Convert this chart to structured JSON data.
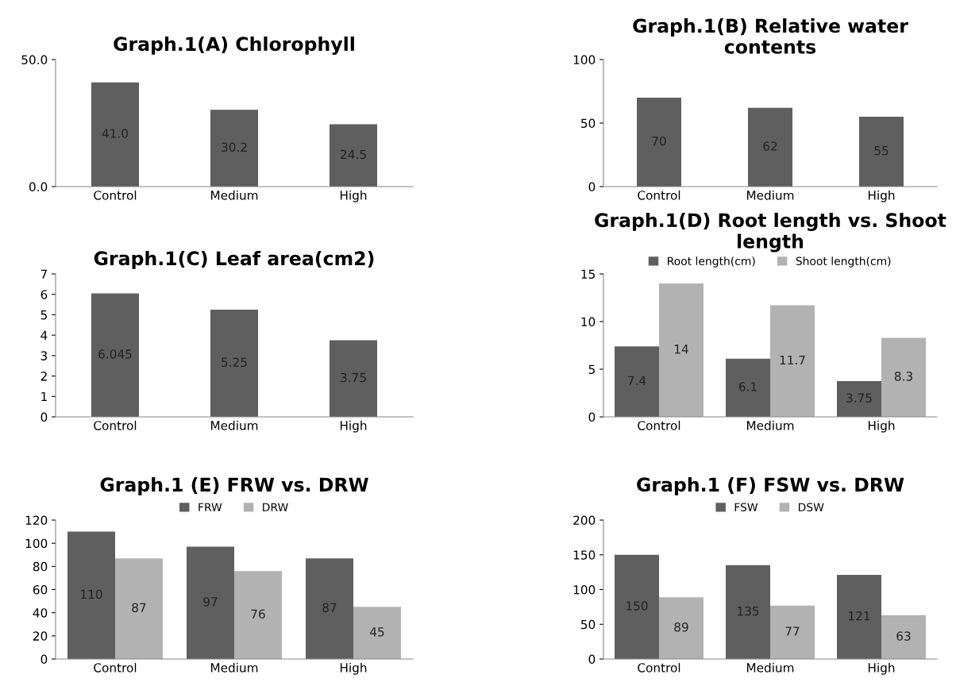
{
  "chart_data": [
    {
      "type": "bar",
      "title": "Graph.1(A) Chlorophyll",
      "categories": [
        "Control",
        "Medium",
        "High"
      ],
      "series": [
        {
          "color": "#5f5f5f",
          "values": [
            41.0,
            30.2,
            24.5
          ],
          "value_labels": [
            "41.0",
            "30.2",
            "24.5"
          ]
        }
      ],
      "ylim": [
        0,
        50
      ],
      "yticks": [
        {
          "value": 0,
          "label": "0.0"
        },
        {
          "value": 50,
          "label": "50.0"
        }
      ],
      "grid": false,
      "legend": false
    },
    {
      "type": "bar",
      "title": "Graph.1(B) Relative water contents",
      "categories": [
        "Control",
        "Medium",
        "High"
      ],
      "series": [
        {
          "color": "#5f5f5f",
          "values": [
            70,
            62,
            55
          ]
        }
      ],
      "ylim": [
        0,
        100
      ],
      "yticks": [
        0,
        50,
        100
      ],
      "data_labels": true,
      "grid": false,
      "legend": false
    },
    {
      "type": "bar",
      "title": "Graph.1(C) Leaf area(cm2)",
      "categories": [
        "Control",
        "Medium",
        "High"
      ],
      "series": [
        {
          "color": "#5f5f5f",
          "values": [
            6.045,
            5.25,
            3.75
          ]
        }
      ],
      "ylim": [
        0,
        7
      ],
      "yticks": [
        0,
        1,
        2,
        3,
        4,
        5,
        6,
        7
      ],
      "data_labels": true,
      "grid": false,
      "legend": false
    },
    {
      "type": "bar",
      "title": "Graph.1(D) Root length vs. Shoot length",
      "categories": [
        "Control",
        "Medium",
        "High"
      ],
      "series": [
        {
          "name": "Root length(cm)",
          "color": "#5f5f5f",
          "values": [
            7.4,
            6.1,
            3.75
          ]
        },
        {
          "name": "Shoot length(cm)",
          "color": "#b2b2b2",
          "values": [
            14,
            11.7,
            8.3
          ]
        }
      ],
      "ylim": [
        0,
        15
      ],
      "yticks": [
        0,
        5,
        10,
        15
      ],
      "data_labels": true,
      "grid": false,
      "legend": "top"
    },
    {
      "type": "bar",
      "title": "Graph.1 (E) FRW vs. DRW",
      "categories": [
        "Control",
        "Medium",
        "High"
      ],
      "series": [
        {
          "name": "FRW",
          "color": "#5f5f5f",
          "values": [
            110,
            97,
            87
          ]
        },
        {
          "name": "DRW",
          "color": "#b2b2b2",
          "values": [
            87,
            76,
            45
          ]
        }
      ],
      "ylim": [
        0,
        120
      ],
      "yticks": [
        0,
        20,
        40,
        60,
        80,
        100,
        120
      ],
      "data_labels": true,
      "grid": false,
      "legend": "top"
    },
    {
      "type": "bar",
      "title": "Graph.1 (F) FSW vs. DRW",
      "categories": [
        "Control",
        "Medium",
        "High"
      ],
      "series": [
        {
          "name": "FSW",
          "color": "#5f5f5f",
          "values": [
            150,
            135,
            121
          ]
        },
        {
          "name": "DSW",
          "color": "#b2b2b2",
          "values": [
            89,
            77,
            63
          ]
        }
      ],
      "ylim": [
        0,
        200
      ],
      "yticks": [
        0,
        50,
        100,
        150,
        200
      ],
      "data_labels": true,
      "grid": false,
      "legend": "top"
    }
  ]
}
